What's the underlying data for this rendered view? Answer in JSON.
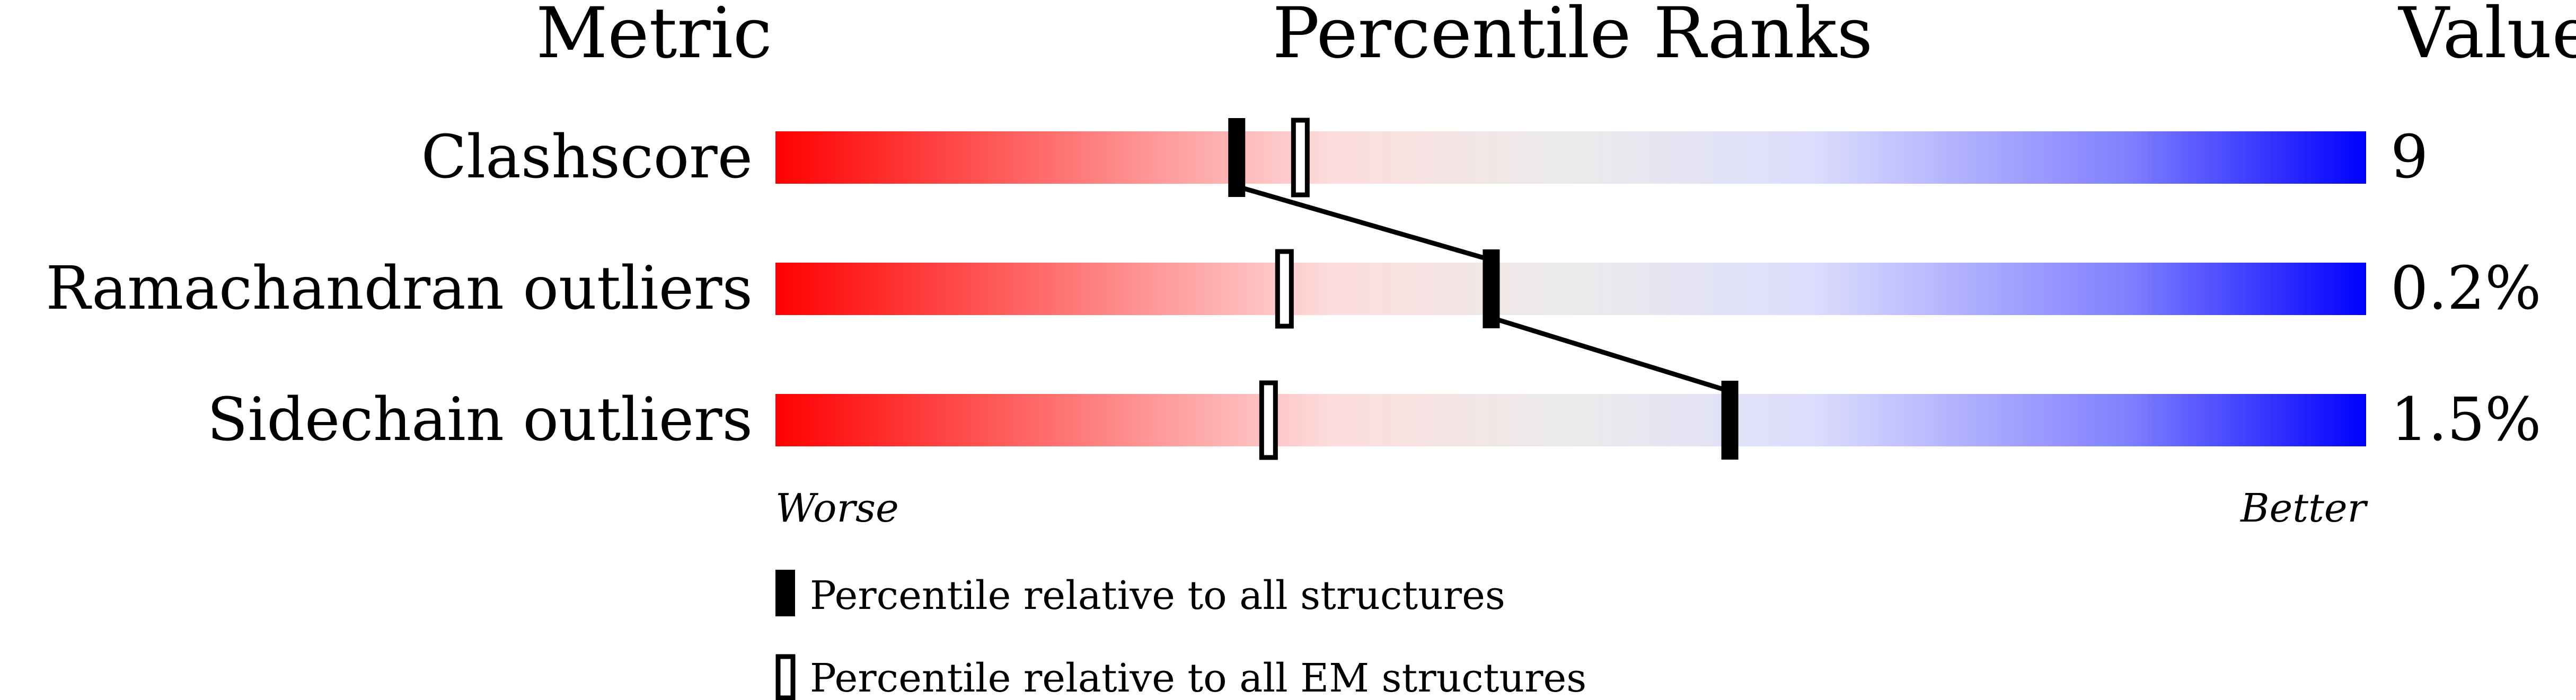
{
  "chart_data": {
    "type": "percentile-slider",
    "headers": {
      "metric": "Metric",
      "percentile": "Percentile Ranks",
      "value": "Value"
    },
    "xlim": [
      0,
      100
    ],
    "axis": {
      "left": "Worse",
      "right": "Better"
    },
    "gradient_colors": [
      "#ff0000",
      "#ff8080",
      "#fddddd",
      "#ebebeb",
      "#ddddfd",
      "#8080ff",
      "#0000ff"
    ],
    "rows": [
      {
        "metric": "Clashscore",
        "value": "9",
        "percentile_all": 29,
        "percentile_em": 33
      },
      {
        "metric": "Ramachandran outliers",
        "value": "0.2%",
        "percentile_all": 45,
        "percentile_em": 32
      },
      {
        "metric": "Sidechain outliers",
        "value": "1.5%",
        "percentile_all": 60,
        "percentile_em": 31
      }
    ],
    "legend": [
      {
        "marker": "filled",
        "label": "Percentile relative to all structures"
      },
      {
        "marker": "open",
        "label": "Percentile relative to all EM structures"
      }
    ]
  }
}
